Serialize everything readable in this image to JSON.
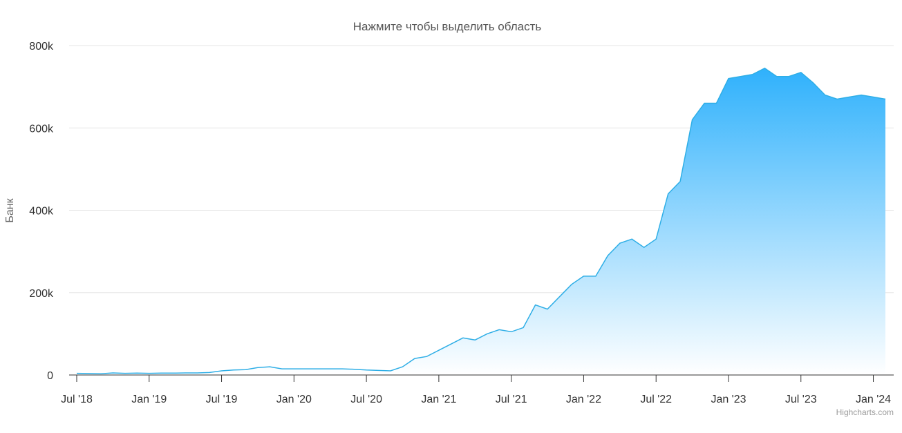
{
  "chart_data": {
    "type": "area",
    "title": "Нажмите чтобы выделить область",
    "y_label": "Банк",
    "credits": "Highcharts.com",
    "x": [
      "2018-07",
      "2018-08",
      "2018-09",
      "2018-10",
      "2018-11",
      "2018-12",
      "2019-01",
      "2019-02",
      "2019-03",
      "2019-04",
      "2019-05",
      "2019-06",
      "2019-07",
      "2019-08",
      "2019-09",
      "2019-10",
      "2019-11",
      "2019-12",
      "2020-01",
      "2020-02",
      "2020-03",
      "2020-04",
      "2020-05",
      "2020-06",
      "2020-07",
      "2020-08",
      "2020-09",
      "2020-10",
      "2020-11",
      "2020-12",
      "2021-01",
      "2021-02",
      "2021-03",
      "2021-04",
      "2021-05",
      "2021-06",
      "2021-07",
      "2021-08",
      "2021-09",
      "2021-10",
      "2021-11",
      "2021-12",
      "2022-01",
      "2022-02",
      "2022-03",
      "2022-04",
      "2022-05",
      "2022-06",
      "2022-07",
      "2022-08",
      "2022-09",
      "2022-10",
      "2022-11",
      "2022-12",
      "2023-01",
      "2023-02",
      "2023-03",
      "2023-04",
      "2023-05",
      "2023-06",
      "2023-07",
      "2023-08",
      "2023-09",
      "2023-10",
      "2023-11",
      "2023-12",
      "2024-01",
      "2024-02"
    ],
    "series": [
      {
        "color": "#2eaee6",
        "fill_color": "#2fb1fc",
        "values": [
          4000,
          3500,
          3000,
          5000,
          4000,
          4500,
          4000,
          4500,
          4500,
          5000,
          5000,
          6000,
          10000,
          12000,
          13000,
          18000,
          20000,
          15000,
          15000,
          15000,
          15000,
          15000,
          15000,
          14000,
          12000,
          11000,
          10000,
          20000,
          40000,
          45000,
          60000,
          75000,
          90000,
          85000,
          100000,
          110000,
          105000,
          115000,
          170000,
          160000,
          190000,
          220000,
          240000,
          240000,
          290000,
          320000,
          330000,
          310000,
          330000,
          440000,
          470000,
          620000,
          660000,
          660000,
          720000,
          725000,
          730000,
          745000,
          725000,
          725000,
          735000,
          710000,
          680000,
          670000,
          675000,
          680000,
          675000,
          670000
        ]
      }
    ],
    "xlim": [
      "2018-07",
      "2024-02"
    ],
    "xticks": [
      {
        "value": "2018-07",
        "label": "Jul '18"
      },
      {
        "value": "2019-01",
        "label": "Jan '19"
      },
      {
        "value": "2019-07",
        "label": "Jul '19"
      },
      {
        "value": "2020-01",
        "label": "Jan '20"
      },
      {
        "value": "2020-07",
        "label": "Jul '20"
      },
      {
        "value": "2021-01",
        "label": "Jan '21"
      },
      {
        "value": "2021-07",
        "label": "Jul '21"
      },
      {
        "value": "2022-01",
        "label": "Jan '22"
      },
      {
        "value": "2022-07",
        "label": "Jul '22"
      },
      {
        "value": "2023-01",
        "label": "Jan '23"
      },
      {
        "value": "2023-07",
        "label": "Jul '23"
      },
      {
        "value": "2024-01",
        "label": "Jan '24"
      }
    ],
    "ylim": [
      0,
      800000
    ],
    "yticks": [
      0,
      {
        "value": 200000,
        "label": "200k"
      },
      {
        "value": 400000,
        "label": "400k"
      },
      {
        "value": 600000,
        "label": "600k"
      },
      {
        "value": 800000,
        "label": "800k"
      }
    ],
    "grid": true
  }
}
